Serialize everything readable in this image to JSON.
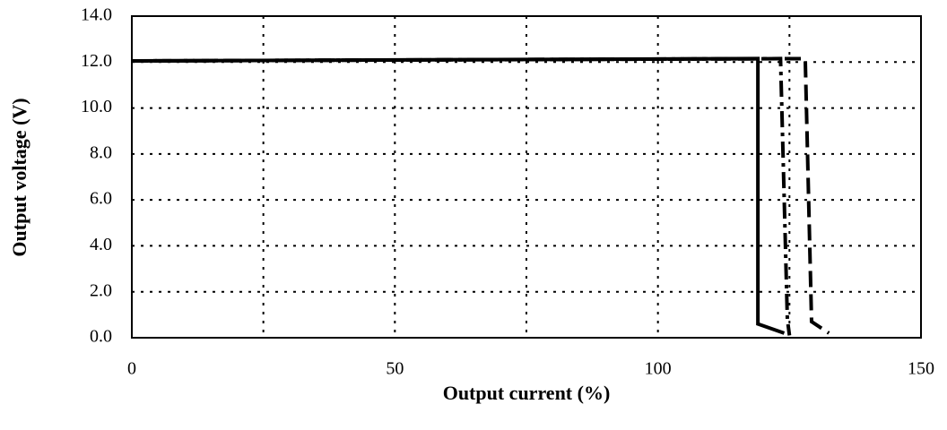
{
  "chart_data": {
    "type": "line",
    "xlabel": "Output current (%)",
    "ylabel": "Output voltage (V)",
    "xlim": [
      0,
      150
    ],
    "xticks": [
      0,
      50,
      100,
      150
    ],
    "xgrid": [
      25,
      50,
      75,
      100,
      125
    ],
    "ylim": [
      0,
      14
    ],
    "yticks": [
      {
        "value": 0,
        "label": "0.0"
      },
      {
        "value": 2,
        "label": "2.0"
      },
      {
        "value": 4,
        "label": "4.0"
      },
      {
        "value": 6,
        "label": "6.0"
      },
      {
        "value": 8,
        "label": "8.0"
      },
      {
        "value": 10,
        "label": "10.0"
      },
      {
        "value": 12,
        "label": "12.0"
      },
      {
        "value": 14,
        "label": "14.0"
      }
    ],
    "grid": true,
    "series": [
      {
        "color": "#000000",
        "dash": "solid",
        "x": [
          0,
          119,
          119,
          124
        ],
        "values": [
          12.05,
          12.15,
          0.6,
          0.2
        ]
      },
      {
        "color": "#000000",
        "dash": "dashdot",
        "x": [
          0,
          123.3,
          124.6,
          125
        ],
        "values": [
          12.05,
          12.15,
          0.8,
          0.1
        ]
      },
      {
        "color": "#000000",
        "dash": "dash",
        "x": [
          0,
          128,
          129.2,
          132.5
        ],
        "values": [
          12.05,
          12.15,
          0.7,
          0.2
        ]
      }
    ]
  }
}
